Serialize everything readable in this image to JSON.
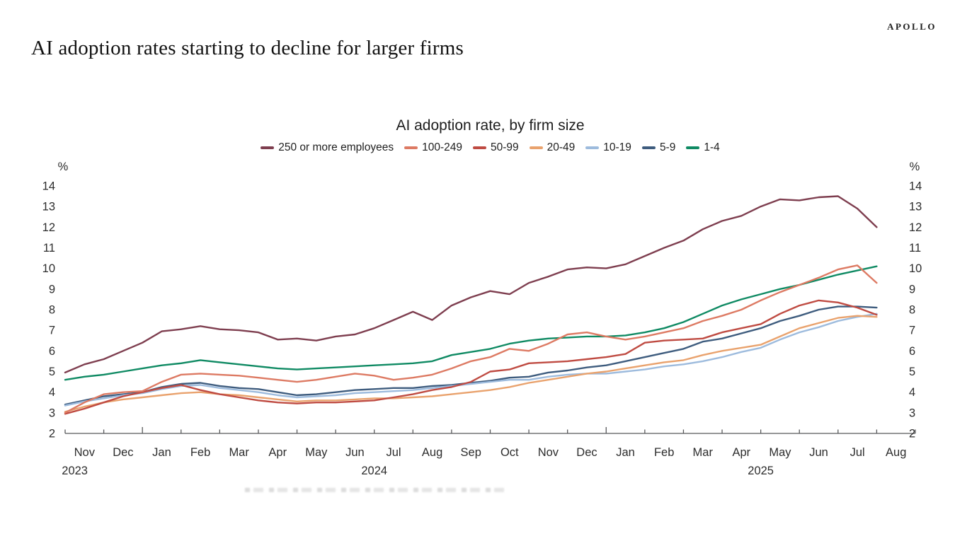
{
  "page": {
    "brand": "APOLLO",
    "heading": "AI adoption rates starting to decline for larger firms"
  },
  "chart_data": {
    "type": "line",
    "title": "AI adoption rate, by firm size",
    "ylabel": "%",
    "unit_label": "%",
    "ylim": [
      2,
      14
    ],
    "y_ticks": [
      2,
      3,
      4,
      5,
      6,
      7,
      8,
      9,
      10,
      11,
      12,
      13,
      14
    ],
    "grid": false,
    "legend_position": "top",
    "x_unit": "half-month samples, Nov 2023 through Aug 2025",
    "x_step_months": 0.5,
    "month_labels": [
      "Nov",
      "Dec",
      "Jan",
      "Feb",
      "Mar",
      "Apr",
      "May",
      "Jun",
      "Jul",
      "Aug",
      "Sep",
      "Oct",
      "Nov",
      "Dec",
      "Jan",
      "Feb",
      "Mar",
      "Apr",
      "May",
      "Jun",
      "Jul",
      "Aug"
    ],
    "year_labels": [
      {
        "label": "2023",
        "month_center": 0.25
      },
      {
        "label": "2024",
        "month_center": 8.0
      },
      {
        "label": "2025",
        "month_center": 18.0
      }
    ],
    "series": [
      {
        "name": "250 or more employees",
        "color": "#7e3e4f",
        "values": [
          4.95,
          5.35,
          5.6,
          6.0,
          6.4,
          6.95,
          7.05,
          7.2,
          7.05,
          7.0,
          6.9,
          6.55,
          6.6,
          6.5,
          6.7,
          6.8,
          7.1,
          7.5,
          7.9,
          7.5,
          8.2,
          8.6,
          8.9,
          8.75,
          9.3,
          9.6,
          9.95,
          10.05,
          10.0,
          10.2,
          10.6,
          11.0,
          11.35,
          11.9,
          12.3,
          12.55,
          13.0,
          13.35,
          13.3,
          13.45,
          13.5,
          12.9,
          12.0
        ]
      },
      {
        "name": "100-249",
        "color": "#dd7a63",
        "values": [
          3.0,
          3.5,
          3.9,
          4.0,
          4.05,
          4.5,
          4.85,
          4.9,
          4.85,
          4.8,
          4.7,
          4.6,
          4.5,
          4.6,
          4.75,
          4.9,
          4.8,
          4.6,
          4.7,
          4.85,
          5.15,
          5.5,
          5.7,
          6.1,
          6.0,
          6.35,
          6.8,
          6.9,
          6.7,
          6.55,
          6.7,
          6.9,
          7.1,
          7.45,
          7.7,
          8.0,
          8.45,
          8.85,
          9.2,
          9.55,
          9.95,
          10.15,
          9.3
        ]
      },
      {
        "name": "50-99",
        "color": "#bf4b42",
        "values": [
          2.95,
          3.2,
          3.5,
          3.8,
          4.0,
          4.2,
          4.35,
          4.1,
          3.9,
          3.75,
          3.6,
          3.5,
          3.45,
          3.5,
          3.5,
          3.55,
          3.6,
          3.75,
          3.9,
          4.1,
          4.25,
          4.5,
          5.0,
          5.1,
          5.4,
          5.45,
          5.5,
          5.6,
          5.7,
          5.85,
          6.4,
          6.5,
          6.55,
          6.6,
          6.9,
          7.1,
          7.3,
          7.8,
          8.2,
          8.45,
          8.35,
          8.1,
          7.75
        ]
      },
      {
        "name": "20-49",
        "color": "#e9a26d",
        "values": [
          3.05,
          3.3,
          3.5,
          3.65,
          3.75,
          3.85,
          3.95,
          4.0,
          3.9,
          3.85,
          3.75,
          3.65,
          3.55,
          3.6,
          3.6,
          3.65,
          3.7,
          3.7,
          3.75,
          3.8,
          3.9,
          4.0,
          4.1,
          4.25,
          4.45,
          4.6,
          4.75,
          4.9,
          5.0,
          5.15,
          5.3,
          5.45,
          5.55,
          5.8,
          6.0,
          6.15,
          6.3,
          6.7,
          7.1,
          7.35,
          7.6,
          7.7,
          7.65
        ]
      },
      {
        "name": "10-19",
        "color": "#9dbbdd",
        "values": [
          3.35,
          3.55,
          3.7,
          3.85,
          3.95,
          4.15,
          4.3,
          4.35,
          4.2,
          4.1,
          4.0,
          3.85,
          3.75,
          3.8,
          3.85,
          3.95,
          4.0,
          4.05,
          4.1,
          4.2,
          4.3,
          4.4,
          4.5,
          4.6,
          4.6,
          4.75,
          4.85,
          4.9,
          4.9,
          5.0,
          5.1,
          5.25,
          5.35,
          5.5,
          5.7,
          5.95,
          6.15,
          6.55,
          6.9,
          7.15,
          7.45,
          7.65,
          7.8
        ]
      },
      {
        "name": "5-9",
        "color": "#3e5c7e",
        "values": [
          3.4,
          3.6,
          3.8,
          3.9,
          4.0,
          4.25,
          4.4,
          4.45,
          4.3,
          4.2,
          4.15,
          4.0,
          3.85,
          3.9,
          4.0,
          4.1,
          4.15,
          4.2,
          4.2,
          4.3,
          4.35,
          4.45,
          4.55,
          4.7,
          4.75,
          4.95,
          5.05,
          5.2,
          5.3,
          5.5,
          5.7,
          5.9,
          6.1,
          6.45,
          6.6,
          6.85,
          7.1,
          7.45,
          7.7,
          8.0,
          8.15,
          8.15,
          8.1
        ]
      },
      {
        "name": "1-4",
        "color": "#0f8a63",
        "values": [
          4.6,
          4.75,
          4.85,
          5.0,
          5.15,
          5.3,
          5.4,
          5.55,
          5.45,
          5.35,
          5.25,
          5.15,
          5.1,
          5.15,
          5.2,
          5.25,
          5.3,
          5.35,
          5.4,
          5.5,
          5.8,
          5.95,
          6.1,
          6.35,
          6.5,
          6.6,
          6.65,
          6.7,
          6.7,
          6.75,
          6.9,
          7.1,
          7.4,
          7.8,
          8.2,
          8.5,
          8.75,
          9.0,
          9.2,
          9.45,
          9.7,
          9.9,
          10.1
        ]
      }
    ]
  }
}
